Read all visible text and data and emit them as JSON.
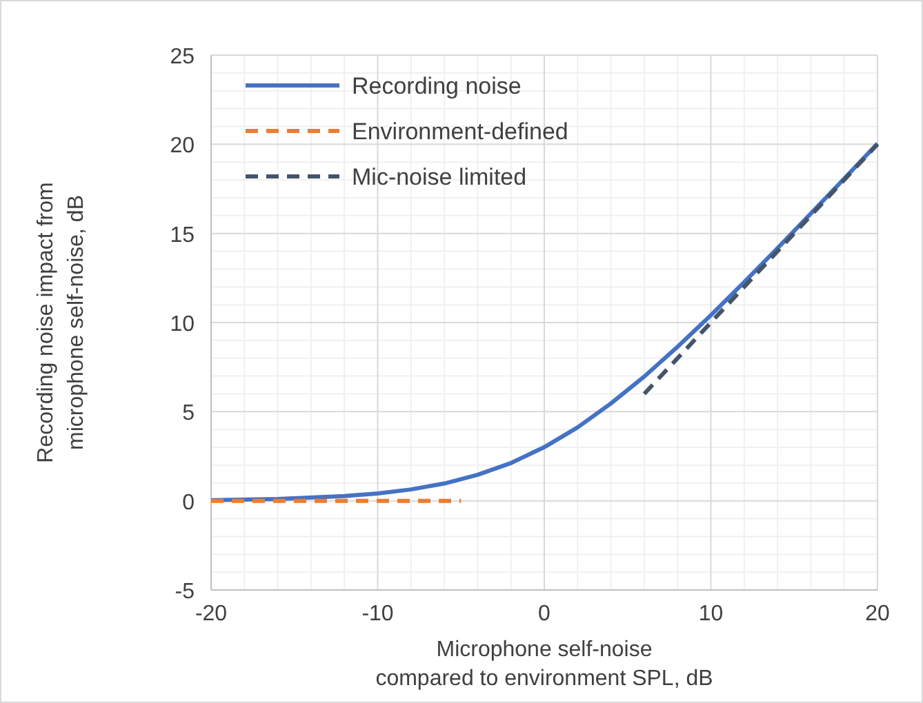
{
  "chart_data": {
    "type": "line",
    "xlabel": "Microphone self-noise\ncompared to environment SPL, dB",
    "ylabel": "Recording noise impact from\nmicrophone self-noise, dB",
    "xlim": [
      -20,
      20
    ],
    "xticks": [
      -20,
      -10,
      0,
      10,
      20
    ],
    "ylim": [
      -5,
      25
    ],
    "yticks": [
      -5,
      0,
      5,
      10,
      15,
      20,
      25
    ],
    "grid": true,
    "legend": "top left",
    "series": [
      {
        "name": "Recording noise",
        "color": "#4472c4",
        "line_style": "solid",
        "x": [
          -20,
          -16,
          -12,
          -10,
          -8,
          -6,
          -4,
          -2,
          0,
          2,
          4,
          6,
          8,
          10,
          12,
          14,
          16,
          18,
          20
        ],
        "values": [
          0.04,
          0.1,
          0.27,
          0.41,
          0.64,
          0.97,
          1.46,
          2.12,
          3.01,
          4.12,
          5.46,
          6.97,
          8.64,
          10.41,
          12.27,
          14.17,
          16.11,
          18.07,
          20.04
        ]
      },
      {
        "name": "Environment-defined",
        "color": "#ed7d31",
        "line_style": "dashed",
        "x": [
          -20,
          -5
        ],
        "values": [
          0,
          0
        ]
      },
      {
        "name": "Mic-noise limited",
        "color": "#44546a",
        "line_style": "dashed",
        "x": [
          6,
          20
        ],
        "values": [
          6,
          20
        ]
      }
    ]
  }
}
